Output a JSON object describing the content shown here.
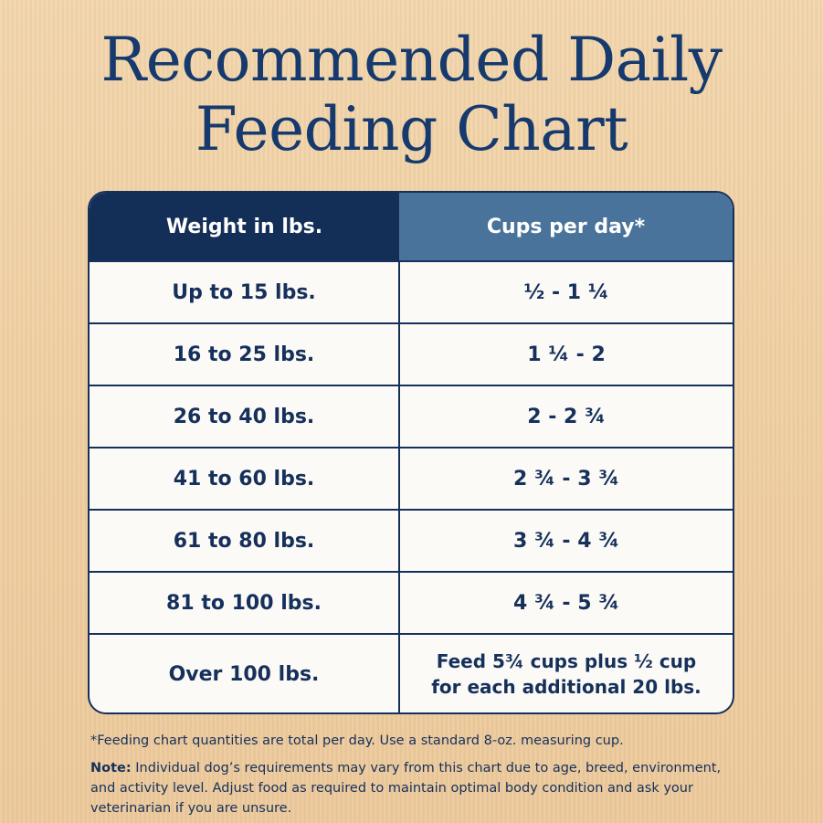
{
  "title": {
    "line1": "Recommended Daily",
    "line2": "Feeding Chart"
  },
  "table": {
    "headers": [
      "Weight in lbs.",
      "Cups per day*"
    ],
    "rows": [
      {
        "weight": "Up to 15 lbs.",
        "cups": "½ - 1 ¼"
      },
      {
        "weight": "16 to 25 lbs.",
        "cups": "1 ¼ - 2"
      },
      {
        "weight": "26 to 40 lbs.",
        "cups": "2 - 2 ¾"
      },
      {
        "weight": "41 to 60 lbs.",
        "cups": "2 ¾ - 3 ¾"
      },
      {
        "weight": "61 to 80 lbs.",
        "cups": "3 ¾ - 4 ¾"
      },
      {
        "weight": "81 to 100 lbs.",
        "cups": "4 ¾ - 5 ¾"
      },
      {
        "weight": "Over 100 lbs.",
        "cups_line1": "Feed 5¾ cups plus ½ cup",
        "cups_line2": "for each additional 20 lbs."
      }
    ]
  },
  "notes": {
    "footnote": "*Feeding chart quantities are total per day. Use a standard 8-oz. measuring cup.",
    "note_label": "Note:",
    "note_text": " Individual dog’s requirements may vary from this chart due to age, breed, environment, and activity level. Adjust food as required to maintain optimal body condition and ask your veterinarian if you are unsure."
  },
  "colors": {
    "navy": "#132f57",
    "steel_blue": "#4a739b",
    "background": "#efcfa3"
  }
}
